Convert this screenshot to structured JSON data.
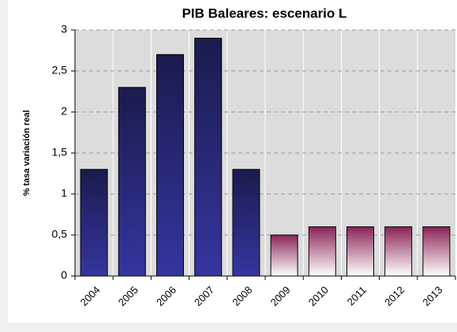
{
  "chart_data": {
    "type": "bar",
    "title": "PIB Baleares: escenario  L",
    "ylabel": "% tasa variación real",
    "categories": [
      "2004",
      "2005",
      "2006",
      "2007",
      "2008",
      "2009",
      "2010",
      "2011",
      "2012",
      "2013"
    ],
    "values": [
      1.3,
      2.3,
      2.7,
      2.9,
      1.3,
      0.5,
      0.6,
      0.6,
      0.6,
      0.6
    ],
    "colors": [
      [
        "#1b1b4d",
        "#3535a0"
      ],
      [
        "#1b1b4d",
        "#3535a0"
      ],
      [
        "#1b1b4d",
        "#3535a0"
      ],
      [
        "#1b1b4d",
        "#3535a0"
      ],
      [
        "#1b1b4d",
        "#3535a0"
      ],
      [
        "#8a2456",
        "#ffffff"
      ],
      [
        "#8a2456",
        "#ffffff"
      ],
      [
        "#8a2456",
        "#ffffff"
      ],
      [
        "#8a2456",
        "#ffffff"
      ],
      [
        "#8a2456",
        "#ffffff"
      ]
    ],
    "ylim": [
      0,
      3
    ],
    "yticks": [
      0,
      {
        "value": 0.5,
        "label": "0,5"
      },
      1,
      {
        "value": 1.5,
        "label": "1,5"
      },
      2,
      {
        "value": 2.5,
        "label": "2,5"
      },
      3
    ],
    "grid": true
  }
}
